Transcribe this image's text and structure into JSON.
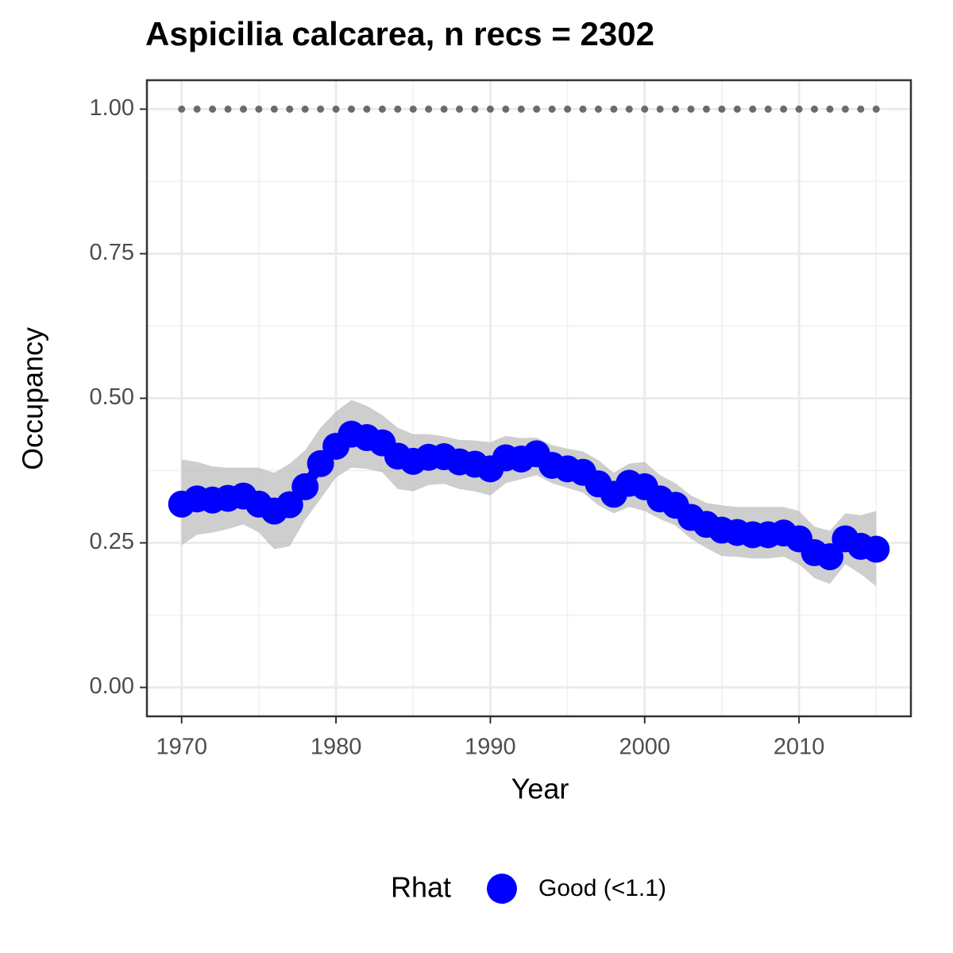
{
  "chart_data": {
    "type": "line",
    "title": "Aspicilia calcarea, n recs = 2302",
    "xlabel": "Year",
    "ylabel": "Occupancy",
    "x": [
      1970,
      1971,
      1972,
      1973,
      1974,
      1975,
      1976,
      1977,
      1978,
      1979,
      1980,
      1981,
      1982,
      1983,
      1984,
      1985,
      1986,
      1987,
      1988,
      1989,
      1990,
      1991,
      1992,
      1993,
      1994,
      1995,
      1996,
      1997,
      1998,
      1999,
      2000,
      2001,
      2002,
      2003,
      2004,
      2005,
      2006,
      2007,
      2008,
      2009,
      2010,
      2011,
      2012,
      2013,
      2014,
      2015
    ],
    "series": [
      {
        "name": "Good (<1.1)",
        "color": "#0000ff",
        "values": [
          0.317,
          0.326,
          0.324,
          0.327,
          0.331,
          0.317,
          0.305,
          0.316,
          0.347,
          0.387,
          0.417,
          0.438,
          0.432,
          0.423,
          0.4,
          0.391,
          0.398,
          0.399,
          0.39,
          0.386,
          0.378,
          0.397,
          0.395,
          0.404,
          0.384,
          0.378,
          0.372,
          0.352,
          0.334,
          0.353,
          0.347,
          0.326,
          0.315,
          0.294,
          0.282,
          0.272,
          0.268,
          0.264,
          0.264,
          0.267,
          0.257,
          0.233,
          0.226,
          0.257,
          0.244,
          0.239
        ],
        "upper": [
          0.394,
          0.39,
          0.382,
          0.38,
          0.38,
          0.38,
          0.371,
          0.387,
          0.41,
          0.449,
          0.477,
          0.497,
          0.487,
          0.471,
          0.449,
          0.438,
          0.438,
          0.434,
          0.428,
          0.427,
          0.424,
          0.435,
          0.431,
          0.432,
          0.419,
          0.413,
          0.408,
          0.393,
          0.371,
          0.387,
          0.39,
          0.367,
          0.353,
          0.332,
          0.319,
          0.315,
          0.312,
          0.312,
          0.312,
          0.312,
          0.305,
          0.278,
          0.271,
          0.301,
          0.298,
          0.305
        ],
        "lower": [
          0.246,
          0.264,
          0.268,
          0.274,
          0.282,
          0.268,
          0.239,
          0.244,
          0.29,
          0.326,
          0.363,
          0.38,
          0.378,
          0.372,
          0.343,
          0.339,
          0.35,
          0.352,
          0.343,
          0.339,
          0.332,
          0.353,
          0.36,
          0.367,
          0.353,
          0.345,
          0.337,
          0.315,
          0.301,
          0.312,
          0.305,
          0.291,
          0.28,
          0.257,
          0.241,
          0.227,
          0.226,
          0.223,
          0.223,
          0.226,
          0.213,
          0.189,
          0.179,
          0.213,
          0.196,
          0.175
        ],
        "ribbon_color": "#bebebe"
      }
    ],
    "reference": {
      "color": "#6b6b6b",
      "values": [
        1,
        1,
        1,
        1,
        1,
        1,
        1,
        1,
        1,
        1,
        1,
        1,
        1,
        1,
        1,
        1,
        1,
        1,
        1,
        1,
        1,
        1,
        1,
        1,
        1,
        1,
        1,
        1,
        1,
        1,
        1,
        1,
        1,
        1,
        1,
        1,
        1,
        1,
        1,
        1,
        1,
        1,
        1,
        1,
        1,
        1
      ]
    },
    "xlim": [
      1967.75,
      2017.25
    ],
    "ylim": [
      -0.05,
      1.05
    ],
    "xticks": [
      1970,
      1980,
      1990,
      2000,
      2010
    ],
    "yticks": [
      {
        "value": 0,
        "label": "0.00"
      },
      {
        "value": 0.25,
        "label": "0.25"
      },
      {
        "value": 0.5,
        "label": "0.50"
      },
      {
        "value": 0.75,
        "label": "0.75"
      },
      {
        "value": 1,
        "label": "1.00"
      }
    ],
    "minor_xticks": [
      1975,
      1985,
      1995,
      2005,
      2015
    ],
    "minor_yticks": [
      0.125,
      0.375,
      0.625,
      0.875
    ],
    "grid": true,
    "legend_title": "Rhat",
    "legend_position": "bottom"
  }
}
